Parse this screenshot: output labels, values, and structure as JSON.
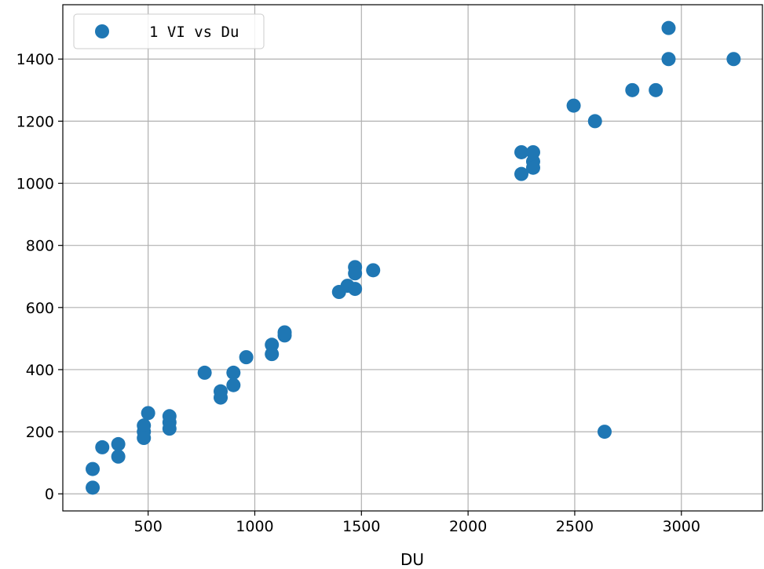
{
  "chart_data": {
    "type": "scatter",
    "title": "",
    "xlabel": "DU",
    "ylabel": "",
    "xlim": [
      100,
      3380
    ],
    "ylim": [
      -55,
      1575
    ],
    "xticks": [
      500,
      1000,
      1500,
      2000,
      2500,
      3000
    ],
    "yticks": [
      0,
      200,
      400,
      600,
      800,
      1000,
      1200,
      1400
    ],
    "grid": true,
    "legend_position": "top-left",
    "color": "#1f77b4",
    "series": [
      {
        "name": "1 VI vs Du",
        "points": [
          [
            240,
            80
          ],
          [
            240,
            20
          ],
          [
            285,
            150
          ],
          [
            360,
            160
          ],
          [
            360,
            120
          ],
          [
            480,
            220
          ],
          [
            480,
            200
          ],
          [
            480,
            180
          ],
          [
            500,
            260
          ],
          [
            600,
            250
          ],
          [
            600,
            230
          ],
          [
            600,
            210
          ],
          [
            765,
            390
          ],
          [
            840,
            330
          ],
          [
            840,
            310
          ],
          [
            900,
            390
          ],
          [
            900,
            350
          ],
          [
            960,
            440
          ],
          [
            1080,
            480
          ],
          [
            1080,
            450
          ],
          [
            1140,
            520
          ],
          [
            1140,
            510
          ],
          [
            1395,
            650
          ],
          [
            1435,
            670
          ],
          [
            1470,
            730
          ],
          [
            1470,
            710
          ],
          [
            1470,
            660
          ],
          [
            1555,
            720
          ],
          [
            2250,
            1100
          ],
          [
            2250,
            1030
          ],
          [
            2305,
            1100
          ],
          [
            2305,
            1070
          ],
          [
            2305,
            1050
          ],
          [
            2495,
            1250
          ],
          [
            2595,
            1200
          ],
          [
            2640,
            200
          ],
          [
            2770,
            1300
          ],
          [
            2880,
            1300
          ],
          [
            2940,
            1500
          ],
          [
            2940,
            1400
          ],
          [
            3245,
            1400
          ]
        ]
      }
    ]
  }
}
